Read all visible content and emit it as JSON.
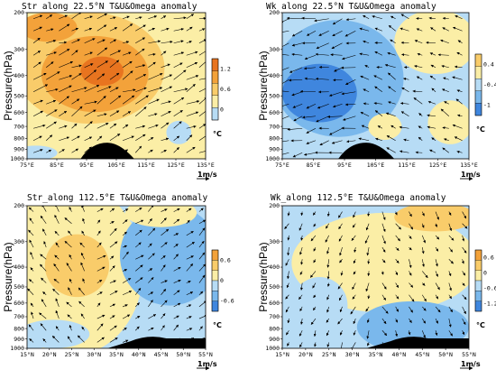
{
  "panels": [
    {
      "title": "Str along 22.5°N T&U&Omega anomaly",
      "ylabel": "Pressure(hPa)",
      "yticks": [
        "200",
        "300",
        "400",
        "500",
        "600",
        "700",
        "800",
        "900",
        "1000"
      ],
      "xticks": [
        "75°E",
        "85°E",
        "95°E",
        "105°E",
        "115°E",
        "125°E",
        "135°E"
      ],
      "colorbar_ticks": [
        "1.2",
        "0.6",
        "0"
      ],
      "unit": "°C",
      "ref_vector": "1m/s",
      "shading": "warm",
      "wind": "strong westerly/upward"
    },
    {
      "title": "Wk along 22.5°N T&U&Omega anomaly",
      "ylabel": "Pressure(hPa)",
      "yticks": [
        "200",
        "300",
        "400",
        "500",
        "600",
        "700",
        "800",
        "900",
        "1000"
      ],
      "xticks": [
        "75°E",
        "85°E",
        "95°E",
        "105°E",
        "115°E",
        "125°E",
        "135°E"
      ],
      "colorbar_ticks": [
        "0.4",
        "-0.4",
        "-1"
      ],
      "unit": "°C",
      "ref_vector": "1m/s",
      "shading": "cool",
      "wind": "easterly/downward"
    },
    {
      "title": "Str_along 112.5°E T&U&Omega anomaly",
      "ylabel": "Pressure(hPa)",
      "yticks": [
        "200",
        "300",
        "400",
        "500",
        "600",
        "700",
        "800",
        "900",
        "1000"
      ],
      "xticks": [
        "15°N",
        "20°N",
        "25°N",
        "30°N",
        "35°N",
        "40°N",
        "45°N",
        "50°N",
        "55°N"
      ],
      "colorbar_ticks": [
        "0.6",
        "0",
        "-0.6"
      ],
      "unit": "°C",
      "ref_vector": "1m/s",
      "shading": "mixed-warm-left",
      "wind": "southerly/upward south"
    },
    {
      "title": "Wk_along 112.5°E T&U&Omega anomaly",
      "ylabel": "Pressure(hPa)",
      "yticks": [
        "200",
        "300",
        "400",
        "500",
        "600",
        "700",
        "800",
        "900",
        "1000"
      ],
      "xticks": [
        "15°N",
        "20°N",
        "25°N",
        "30°N",
        "35°N",
        "40°N",
        "45°N",
        "50°N",
        "55°N"
      ],
      "colorbar_ticks": [
        "0.6",
        "0",
        "-0.6",
        "-1.2"
      ],
      "unit": "°C",
      "ref_vector": "1m/s",
      "shading": "mixed-cool",
      "wind": "northerly/downward"
    }
  ],
  "colors": {
    "deep_orange": "#e8741f",
    "orange": "#f3a23a",
    "light_orange": "#f9cc6a",
    "yellow": "#fbeea6",
    "light_blue": "#b7dcf5",
    "blue": "#7ab8ec",
    "deep_blue": "#3f86de",
    "terrain": "#000000"
  }
}
